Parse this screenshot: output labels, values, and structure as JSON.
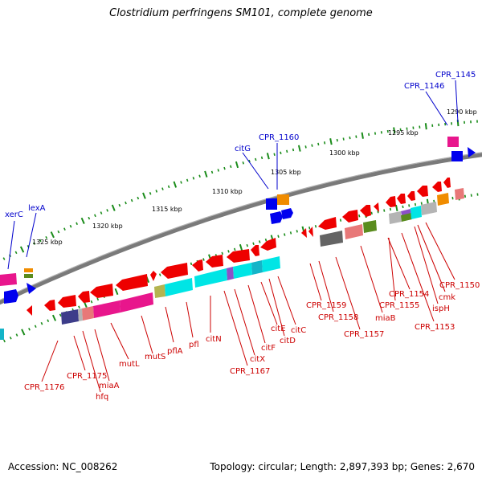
{
  "title": "Clostridium perfringens SM101, complete genome",
  "footer": {
    "accession": "Accession: NC_008262",
    "summary": "Topology: circular; Length: 2,897,393 bp; Genes: 2,670"
  },
  "colors": {
    "backbone": "#7a7a7a",
    "ticks": "#1a8c1a",
    "label_red": "#cc0000",
    "label_blue": "#0000cc",
    "gene_red": "#ee0000",
    "gene_blue": "#0000ee",
    "gene_cyan": "#00e5e5",
    "gene_pink": "#e8168c",
    "gene_navy": "#3d3d8a",
    "gene_salmon": "#e87878",
    "gene_orange": "#f08c00",
    "gene_green": "#5a8c1e",
    "gene_gray": "#b4b4b4",
    "gene_darkgray": "#646464",
    "gene_teal": "#14b4c8",
    "gene_purple": "#8c50c8",
    "gene_olive": "#b4b450"
  },
  "scale_ticks": [
    "1325 kbp",
    "1320 kbp",
    "1315 kbp",
    "1310 kbp",
    "1305 kbp",
    "1300 kbp",
    "1295 kbp",
    "1290 kbp"
  ],
  "outer_labels": [
    "xerC",
    "lexA",
    "citG",
    "CPR_1160",
    "CPR_1146",
    "CPR_1145"
  ],
  "inner_labels": [
    "CPR_1176",
    "CPR_1175",
    "hfq",
    "miaA",
    "mutL",
    "mutS",
    "pflA",
    "pfl",
    "citN",
    "CPR_1167",
    "citX",
    "citF",
    "citE",
    "citD",
    "citC",
    "CPR_1159",
    "CPR_1158",
    "CPR_1157",
    "miaB",
    "CPR_1155",
    "CPR_1154",
    "CPR_1153",
    "ispH",
    "cmk",
    "CPR_1150"
  ]
}
